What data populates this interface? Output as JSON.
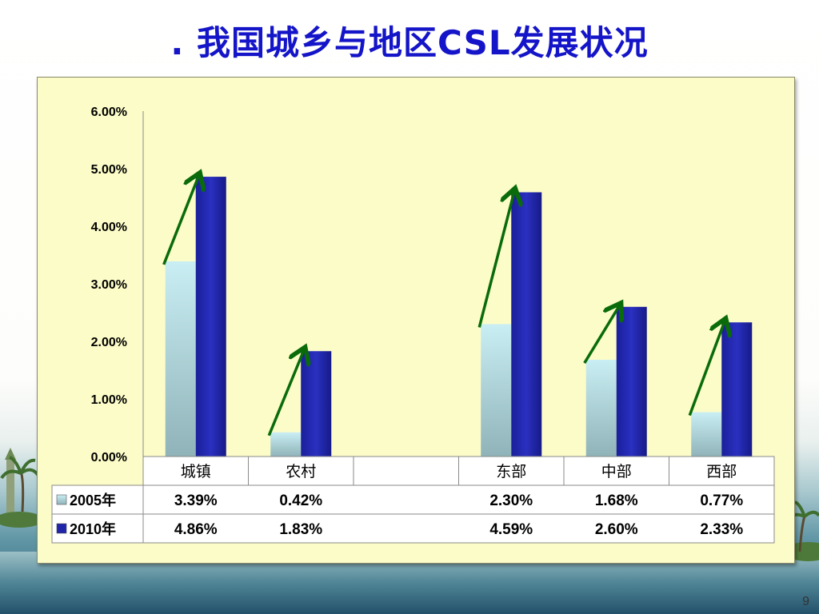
{
  "slide": {
    "title": ". 我国城乡与地区CSL发展状况",
    "page_number": "9"
  },
  "chart_data": {
    "type": "bar",
    "categories": [
      "城镇",
      "农村",
      "",
      "东部",
      "中部",
      "西部"
    ],
    "series": [
      {
        "name": "2005年",
        "values": [
          3.39,
          0.42,
          null,
          2.3,
          1.68,
          0.77
        ],
        "labels": [
          "3.39%",
          "0.42%",
          "",
          "2.30%",
          "1.68%",
          "0.77%"
        ],
        "color": "#b8e2e8"
      },
      {
        "name": "2010年",
        "values": [
          4.86,
          1.83,
          null,
          4.59,
          2.6,
          2.33
        ],
        "labels": [
          "4.86%",
          "1.83%",
          "",
          "4.59%",
          "2.60%",
          "2.33%"
        ],
        "color": "#1f24a8"
      }
    ],
    "ylim": [
      0,
      6
    ],
    "yticks": [
      "0.00%",
      "1.00%",
      "2.00%",
      "3.00%",
      "4.00%",
      "5.00%",
      "6.00%"
    ],
    "data_table": true,
    "arrow_color": "#0a6b0a",
    "panel_color": "#fcfcc8"
  }
}
